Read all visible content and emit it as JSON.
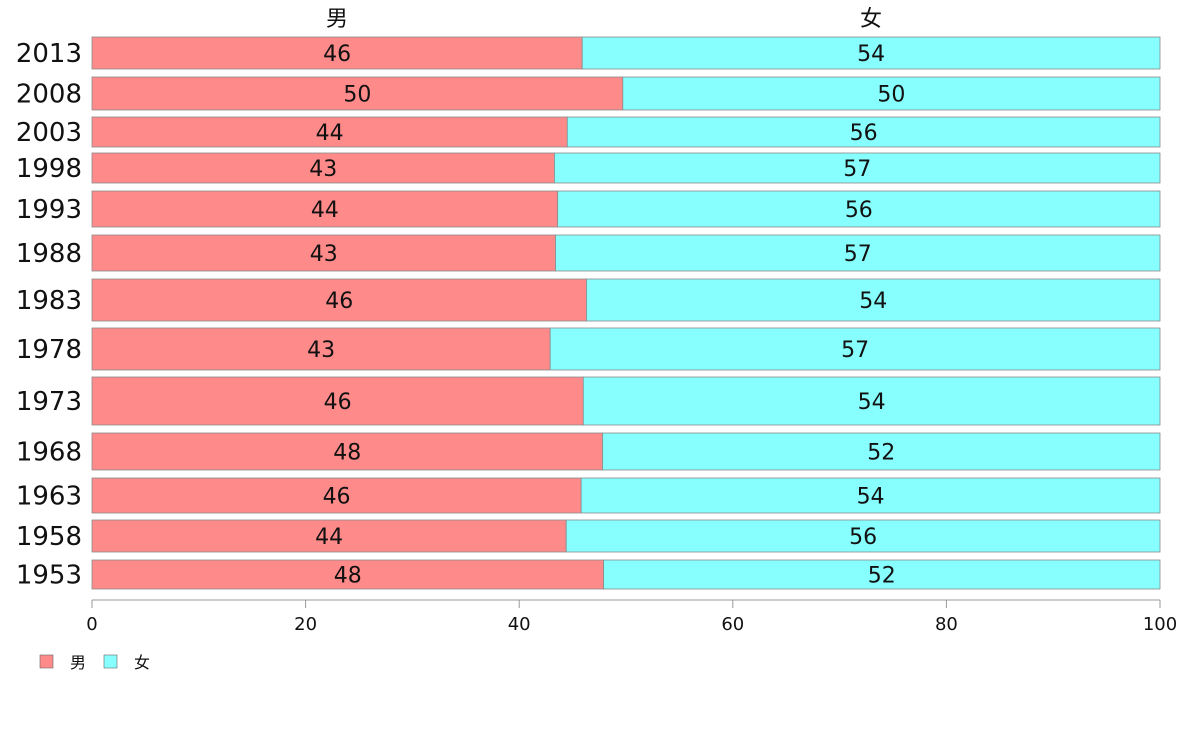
{
  "chart_data": {
    "type": "bar",
    "orientation": "horizontal",
    "stacked": true,
    "title": "",
    "xlabel": "",
    "ylabel": "",
    "xlim": [
      0,
      100
    ],
    "x_ticks": [
      0,
      20,
      40,
      60,
      80,
      100
    ],
    "categories": [
      "2013",
      "2008",
      "2003",
      "1998",
      "1993",
      "1988",
      "1983",
      "1978",
      "1973",
      "1968",
      "1963",
      "1958",
      "1953"
    ],
    "series": [
      {
        "name": "男",
        "color": "#ff8a8a",
        "values": [
          46,
          50,
          44,
          43,
          44,
          43,
          46,
          43,
          46,
          48,
          46,
          44,
          48
        ],
        "positions": [
          45.9,
          49.7,
          44.5,
          43.3,
          43.6,
          43.4,
          46.3,
          42.9,
          46.0,
          47.8,
          45.8,
          44.4,
          47.9
        ]
      },
      {
        "name": "女",
        "color": "#88ffff",
        "values": [
          54,
          50,
          56,
          57,
          56,
          57,
          54,
          57,
          54,
          52,
          54,
          56,
          52
        ]
      }
    ],
    "column_headers": [
      "男",
      "女"
    ],
    "legend": {
      "position": "bottom-left",
      "entries": [
        "男",
        "女"
      ]
    },
    "grid": false
  }
}
